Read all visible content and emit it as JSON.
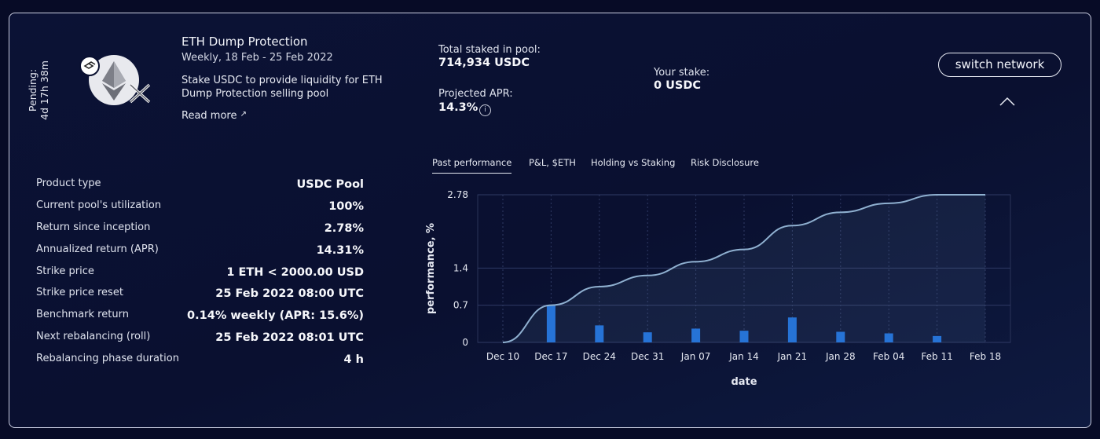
{
  "pending": {
    "label": "Pending:",
    "time": "4d 17h 38m"
  },
  "product": {
    "title": "ETH Dump Protection",
    "dates": "Weekly, 18 Feb - 25 Feb 2022",
    "description": "Stake USDC to provide liquidity for ETH Dump Protection selling pool",
    "read_more": "Read more"
  },
  "stats": {
    "total_label": "Total staked in pool:",
    "total_value": "714,934 USDC",
    "apr_label": "Projected APR:",
    "apr_value": "14.3%",
    "stake_label": "Your stake:",
    "stake_value": "0 USDC"
  },
  "switch_network": "switch network",
  "metrics": [
    {
      "label": "Product type",
      "value": "USDC Pool"
    },
    {
      "label": "Current pool's utilization",
      "value": "100%"
    },
    {
      "label": "Return since inception",
      "value": "2.78%"
    },
    {
      "label": "Annualized return (APR)",
      "value": "14.31%"
    },
    {
      "label": "Strike price",
      "value": "1 ETH < 2000.00 USD"
    },
    {
      "label": "Strike price reset",
      "value": "25 Feb 2022 08:00 UTC"
    },
    {
      "label": "Benchmark return",
      "value": "0.14% weekly (APR: 15.6%)"
    },
    {
      "label": "Next rebalancing (roll)",
      "value": "25 Feb 2022 08:01 UTC"
    },
    {
      "label": "Rebalancing phase duration",
      "value": "4 h"
    }
  ],
  "tabs": [
    {
      "label": "Past performance",
      "active": true
    },
    {
      "label": "P&L, $ETH",
      "active": false
    },
    {
      "label": "Holding vs Staking",
      "active": false
    },
    {
      "label": "Risk Disclosure",
      "active": false
    }
  ],
  "colors": {
    "bar": "#1e6fd9",
    "line": "#8fb0d0",
    "accent": "#e9ecf5"
  },
  "chart_data": {
    "type": "line",
    "xlabel": "date",
    "ylabel": "performance, %",
    "yticks": [
      "0",
      "0.7",
      "1.4",
      "2.78"
    ],
    "ytick_values": [
      0,
      0.7,
      1.4,
      2.78
    ],
    "ylim": [
      0,
      2.78
    ],
    "x": [
      "Dec 10",
      "Dec 17",
      "Dec 24",
      "Dec 31",
      "Jan 07",
      "Jan 14",
      "Jan 21",
      "Jan 28",
      "Feb 04",
      "Feb 11",
      "Feb 18"
    ],
    "series": [
      {
        "type": "line",
        "values": [
          0,
          0.7,
          1.05,
          1.26,
          1.52,
          1.75,
          2.2,
          2.45,
          2.62,
          2.78,
          2.78
        ]
      },
      {
        "type": "bar",
        "values": [
          null,
          0.7,
          0.32,
          0.19,
          0.26,
          0.22,
          0.47,
          0.2,
          0.17,
          0.12,
          null
        ]
      }
    ],
    "grid": true
  }
}
